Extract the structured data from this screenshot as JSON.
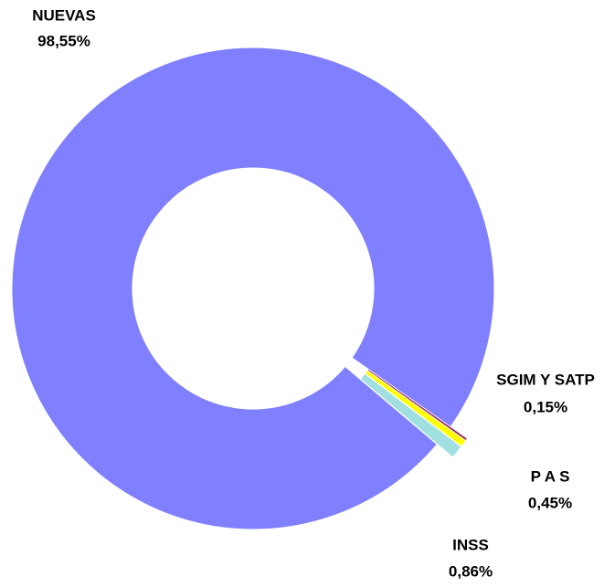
{
  "chart_data": {
    "type": "donut",
    "categories": [
      "NUEVAS",
      "SGIM Y SATP",
      "P A S",
      "INSS"
    ],
    "values": [
      98.55,
      0.15,
      0.45,
      0.86
    ],
    "value_labels": [
      "98,55%",
      "0,15%",
      "0,45%",
      "0,86%"
    ],
    "colors": [
      "#8080ff",
      "#993366",
      "#ffff00",
      "#a0e0e0"
    ]
  }
}
